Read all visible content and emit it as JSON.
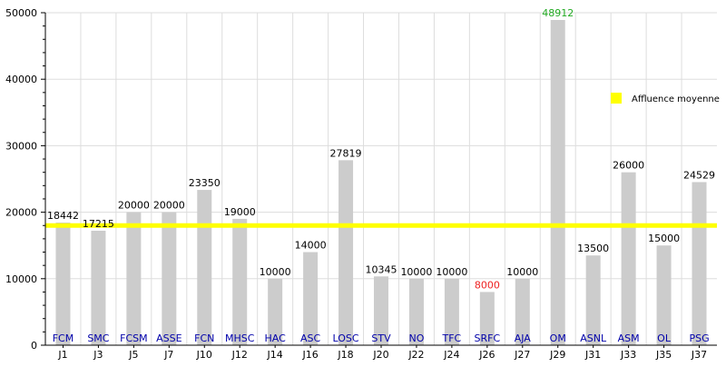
{
  "chart_data": {
    "type": "bar",
    "categories": [
      "J1",
      "J3",
      "J5",
      "J7",
      "J10",
      "J12",
      "J14",
      "J16",
      "J18",
      "J20",
      "J22",
      "J24",
      "J26",
      "J27",
      "J29",
      "J31",
      "J33",
      "J35",
      "J37"
    ],
    "teams": [
      "FCM",
      "SMC",
      "FCSM",
      "ASSE",
      "FCN",
      "MHSC",
      "HAC",
      "ASC",
      "LOSC",
      "STV",
      "NO",
      "TFC",
      "SRFC",
      "AJA",
      "OM",
      "ASNL",
      "ASM",
      "OL",
      "PSG"
    ],
    "values": [
      18442,
      17215,
      20000,
      20000,
      23350,
      19000,
      10000,
      14000,
      27819,
      10345,
      10000,
      10000,
      8000,
      10000,
      48912,
      13500,
      26000,
      15000,
      24529
    ],
    "value_labels": [
      "18442",
      "17215",
      "20000",
      "20000",
      "23350",
      "19000",
      "10000",
      "14000",
      "27819",
      "10345",
      "10000",
      "10000",
      "8000",
      "10000",
      "48912",
      "13500",
      "26000",
      "15000",
      "24529"
    ],
    "label_colors": {
      "max": "#22aa22",
      "min": "#ee2222",
      "default": "#000000"
    },
    "bar_color": "#cccccc",
    "team_label_color": "#0000aa",
    "average": 18000,
    "average_line_color": "#ffff00",
    "average_legend": "Affluence moyenne",
    "ylim": [
      0,
      50000
    ],
    "yticks": [
      0,
      10000,
      20000,
      30000,
      40000,
      50000
    ],
    "ytick_labels": [
      "0",
      "10000",
      "20000",
      "30000",
      "40000",
      "50000"
    ],
    "minor_tick_step": 2000,
    "grid": true,
    "grid_color": "#dddddd",
    "legend_position": "right",
    "title": "",
    "xlabel": "",
    "ylabel": ""
  }
}
